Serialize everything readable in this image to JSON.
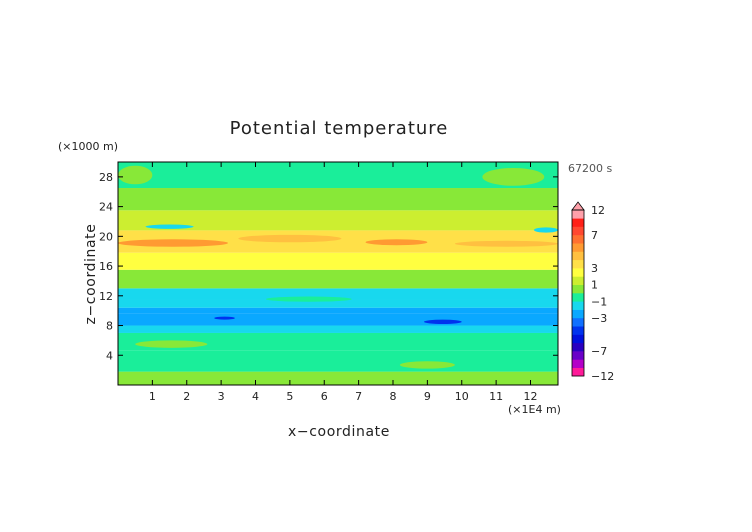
{
  "chart_data": {
    "type": "heatmap",
    "title": "Potential temperature",
    "xlabel": "x−coordinate",
    "ylabel": "z−coordinate",
    "x_unit": "(×1E4 m)",
    "y_unit": "(×1000 m)",
    "time_label": "67200 s",
    "xlim": [
      0,
      12.8
    ],
    "ylim": [
      0,
      30
    ],
    "x_ticks": [
      1,
      2,
      3,
      4,
      5,
      6,
      7,
      8,
      9,
      10,
      11,
      12
    ],
    "y_ticks": [
      4,
      8,
      12,
      16,
      20,
      24,
      28
    ],
    "grid": false,
    "legend": "right",
    "colorbar": {
      "labels": [
        "12",
        "7",
        "3",
        "1",
        "−1",
        "−3",
        "−7",
        "−12"
      ],
      "label_values": [
        12,
        7,
        3,
        1,
        -1,
        -3,
        -7,
        -12
      ],
      "levels": [
        -12,
        -10,
        -8,
        -7,
        -6,
        -5,
        -4,
        -3,
        -2,
        -1,
        0,
        1,
        2,
        3,
        4,
        5,
        6,
        7,
        8,
        10,
        12
      ],
      "colors": [
        "#ff1a99",
        "#b400c8",
        "#6a00c8",
        "#2a00c0",
        "#0010dd",
        "#0033ee",
        "#1070ff",
        "#0aa8ff",
        "#18d8ee",
        "#1aee9a",
        "#88e838",
        "#ccee30",
        "#ffff40",
        "#ffe048",
        "#ffc040",
        "#ff9a32",
        "#ff7030",
        "#ff4830",
        "#ff2018",
        "#ffa0aa"
      ]
    },
    "bands": [
      {
        "z": [
          0,
          1.8
        ],
        "value": 0.6
      },
      {
        "z": [
          1.8,
          4.6
        ],
        "value": -0.5
      },
      {
        "z": [
          4.6,
          7.0
        ],
        "value": -0.2
      },
      {
        "z": [
          7.0,
          8.0
        ],
        "value": -1.5
      },
      {
        "z": [
          8.0,
          9.6
        ],
        "value": -2.6
      },
      {
        "z": [
          9.6,
          10.4
        ],
        "value": -2.2
      },
      {
        "z": [
          10.4,
          11.5
        ],
        "value": -1.6
      },
      {
        "z": [
          11.5,
          13.0
        ],
        "value": -1.2
      },
      {
        "z": [
          13.0,
          15.5
        ],
        "value": 0.5
      },
      {
        "z": [
          15.5,
          17.8
        ],
        "value": 2.0
      },
      {
        "z": [
          17.8,
          20.8
        ],
        "value": 3.6
      },
      {
        "z": [
          20.8,
          23.5
        ],
        "value": 1.4
      },
      {
        "z": [
          23.5,
          26.5
        ],
        "value": 0.5
      },
      {
        "z": [
          26.5,
          30
        ],
        "value": -0.3
      }
    ],
    "patches": [
      {
        "x": [
          0,
          3.2
        ],
        "z": [
          18.6,
          19.6
        ],
        "value": 5.2
      },
      {
        "x": [
          7.2,
          9.0
        ],
        "z": [
          18.8,
          19.6
        ],
        "value": 5.1
      },
      {
        "x": [
          9.8,
          12.8
        ],
        "z": [
          18.6,
          19.4
        ],
        "value": 4.6
      },
      {
        "x": [
          3.5,
          6.5
        ],
        "z": [
          19.2,
          20.2
        ],
        "value": 4.4
      },
      {
        "x": [
          4.0,
          6.0
        ],
        "z": [
          16.6,
          17.4
        ],
        "value": 2.2
      },
      {
        "x": [
          10.0,
          12.6
        ],
        "z": [
          16.4,
          17.4
        ],
        "value": 2.4
      },
      {
        "x": [
          2.8,
          3.4
        ],
        "z": [
          8.8,
          9.2
        ],
        "value": -4.2
      },
      {
        "x": [
          8.9,
          10.0
        ],
        "z": [
          8.2,
          8.8
        ],
        "value": -4.4
      },
      {
        "x": [
          0.8,
          2.2
        ],
        "z": [
          21.0,
          21.6
        ],
        "value": -1.4
      },
      {
        "x": [
          12.1,
          12.8
        ],
        "z": [
          20.5,
          21.2
        ],
        "value": -1.3
      },
      {
        "x": [
          4.3,
          6.8
        ],
        "z": [
          11.2,
          11.9
        ],
        "value": -0.4
      },
      {
        "x": [
          0,
          1.0
        ],
        "z": [
          27.0,
          29.5
        ],
        "value": 0.4
      },
      {
        "x": [
          10.6,
          12.4
        ],
        "z": [
          26.8,
          29.2
        ],
        "value": 0.4
      },
      {
        "x": [
          8.2,
          9.8
        ],
        "z": [
          2.2,
          3.2
        ],
        "value": 0.5
      },
      {
        "x": [
          0.5,
          2.6
        ],
        "z": [
          5.0,
          6.0
        ],
        "value": 0.6
      }
    ]
  }
}
